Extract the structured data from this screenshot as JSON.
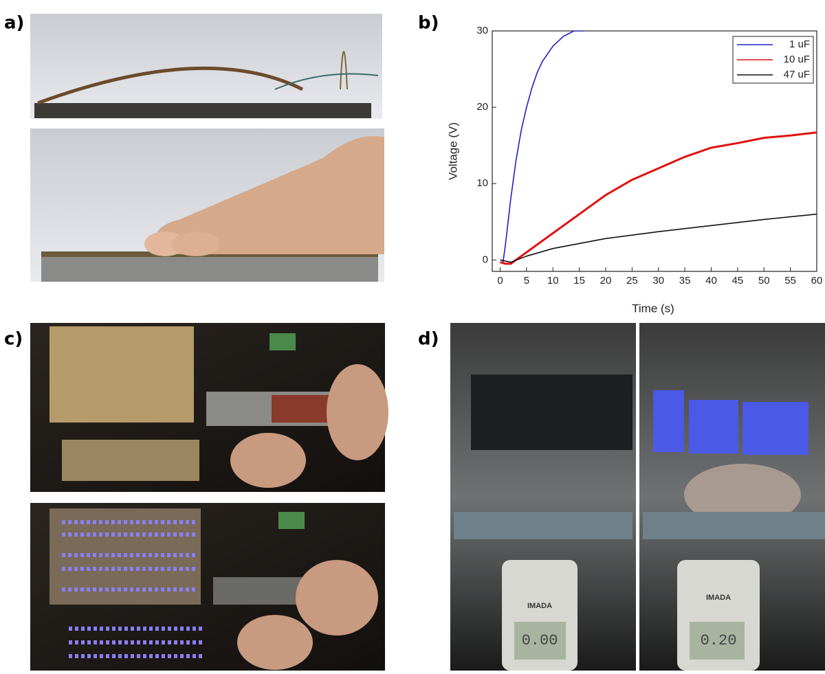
{
  "panels": {
    "a": {
      "label": "a)"
    },
    "b": {
      "label": "b)"
    },
    "c": {
      "label": "c)"
    },
    "d": {
      "label": "d)",
      "left_gauge_brand": "IMADA",
      "left_reading": "0.00",
      "right_gauge_brand": "IMADA",
      "right_reading": "0.20"
    }
  },
  "chart_data": {
    "type": "line",
    "x_label": "Time (s)",
    "y_label": "Voltage (V)",
    "xlim": [
      -1.5,
      60
    ],
    "ylim": [
      -1.5,
      30
    ],
    "xticks": [
      0,
      5,
      10,
      15,
      20,
      25,
      30,
      35,
      40,
      45,
      50,
      55,
      60
    ],
    "yticks": [
      0,
      10,
      20,
      30
    ],
    "legend": "upper right",
    "series": [
      {
        "name": "1 uF",
        "color": "#1f1fd0",
        "x": [
          0.5,
          1,
          2,
          3,
          4,
          5,
          6,
          7,
          8,
          10,
          12,
          14,
          16
        ],
        "values": [
          -0.5,
          2,
          8,
          13,
          17,
          20,
          22.5,
          24.5,
          26,
          28,
          29.3,
          30,
          30
        ]
      },
      {
        "name": "10 uF",
        "color": "#e01010",
        "x": [
          0,
          1,
          2,
          3,
          5,
          10,
          15,
          20,
          25,
          30,
          35,
          40,
          45,
          50,
          55,
          60
        ],
        "values": [
          -0.3,
          -0.5,
          -0.5,
          0,
          1,
          3.5,
          6,
          8.5,
          10.5,
          12,
          13.5,
          14.7,
          15.3,
          16,
          16.3,
          16.7
        ]
      },
      {
        "name": "47 uF",
        "color": "#111111",
        "x": [
          0,
          2,
          5,
          10,
          20,
          30,
          40,
          50,
          60
        ],
        "values": [
          0,
          -0.3,
          0.5,
          1.5,
          2.8,
          3.7,
          4.5,
          5.3,
          6
        ]
      }
    ]
  }
}
